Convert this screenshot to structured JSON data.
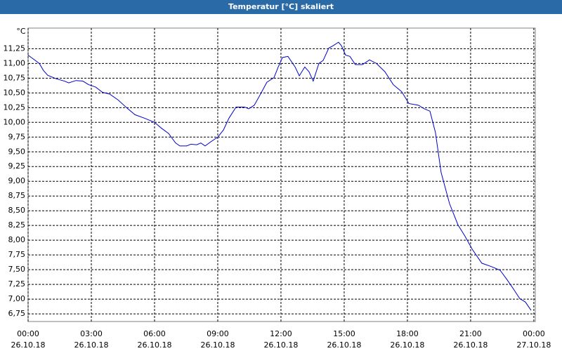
{
  "chart_data": {
    "type": "line",
    "title": "Temperatur [°C] skaliert",
    "y_label": "°C",
    "x": [
      0,
      0.27,
      0.53,
      0.73,
      0.93,
      1.33,
      1.73,
      1.93,
      2.27,
      2.6,
      2.87,
      3.2,
      3.53,
      3.87,
      4.27,
      4.67,
      5.07,
      5.53,
      6.0,
      6.33,
      6.67,
      7.0,
      7.2,
      7.53,
      7.73,
      8.0,
      8.2,
      8.4,
      8.67,
      9.0,
      9.27,
      9.53,
      9.87,
      10.27,
      10.47,
      10.73,
      11.0,
      11.33,
      11.67,
      11.87,
      12.07,
      12.33,
      12.67,
      12.87,
      13.13,
      13.33,
      13.53,
      13.8,
      14.0,
      14.27,
      14.47,
      14.73,
      14.87,
      15.07,
      15.27,
      15.53,
      15.87,
      16.2,
      16.53,
      16.93,
      17.33,
      17.73,
      18.07,
      18.53,
      18.8,
      19.07,
      19.33,
      19.6,
      20.0,
      20.4,
      20.73,
      21.07,
      21.53,
      22.0,
      22.4,
      22.73,
      23.0,
      23.33,
      23.6,
      23.87
    ],
    "values": [
      11.14,
      11.07,
      11.0,
      10.88,
      10.8,
      10.74,
      10.7,
      10.67,
      10.71,
      10.7,
      10.64,
      10.6,
      10.51,
      10.48,
      10.38,
      10.25,
      10.13,
      10.07,
      10.0,
      9.9,
      9.81,
      9.65,
      9.6,
      9.6,
      9.63,
      9.62,
      9.65,
      9.6,
      9.67,
      9.75,
      9.87,
      10.07,
      10.26,
      10.26,
      10.23,
      10.29,
      10.46,
      10.68,
      10.76,
      10.94,
      11.1,
      11.12,
      10.94,
      10.79,
      10.94,
      10.86,
      10.7,
      11.0,
      11.05,
      11.26,
      11.3,
      11.36,
      11.3,
      11.14,
      11.12,
      10.98,
      10.98,
      11.06,
      11.0,
      10.86,
      10.64,
      10.52,
      10.32,
      10.29,
      10.23,
      10.19,
      9.83,
      9.15,
      8.62,
      8.26,
      8.07,
      7.85,
      7.61,
      7.55,
      7.49,
      7.33,
      7.19,
      7.01,
      6.95,
      6.81
    ],
    "color": "#0000cc",
    "xlim": [
      0,
      24.07
    ],
    "ylim": [
      6.62,
      11.6
    ],
    "xticks": [
      {
        "value": 0,
        "label": "00:00\n26.10.18"
      },
      {
        "value": 3,
        "label": "03:00\n26.10.18"
      },
      {
        "value": 6,
        "label": "06:00\n26.10.18"
      },
      {
        "value": 9,
        "label": "09:00\n26.10.18"
      },
      {
        "value": 12,
        "label": "12:00\n26.10.18"
      },
      {
        "value": 15,
        "label": "15:00\n26.10.18"
      },
      {
        "value": 18,
        "label": "18:00\n26.10.18"
      },
      {
        "value": 21,
        "label": "21:00\n26.10.18"
      },
      {
        "value": 24,
        "label": "00:00\n27.10.18"
      }
    ],
    "yticks": [
      {
        "value": 6.75,
        "label": "6,75"
      },
      {
        "value": 7,
        "label": "7,00"
      },
      {
        "value": 7.25,
        "label": "7,25"
      },
      {
        "value": 7.5,
        "label": "7,50"
      },
      {
        "value": 7.75,
        "label": "7,75"
      },
      {
        "value": 8,
        "label": "8,00"
      },
      {
        "value": 8.25,
        "label": "8,25"
      },
      {
        "value": 8.5,
        "label": "8,50"
      },
      {
        "value": 8.75,
        "label": "8,75"
      },
      {
        "value": 9,
        "label": "9,00"
      },
      {
        "value": 9.25,
        "label": "9,25"
      },
      {
        "value": 9.5,
        "label": "9,50"
      },
      {
        "value": 9.75,
        "label": "9,75"
      },
      {
        "value": 10,
        "label": "10,00"
      },
      {
        "value": 10.25,
        "label": "10,25"
      },
      {
        "value": 10.5,
        "label": "10,50"
      },
      {
        "value": 10.75,
        "label": "10,75"
      },
      {
        "value": 11,
        "label": "11,00"
      },
      {
        "value": 11.25,
        "label": "11,25"
      }
    ],
    "grid": true
  }
}
